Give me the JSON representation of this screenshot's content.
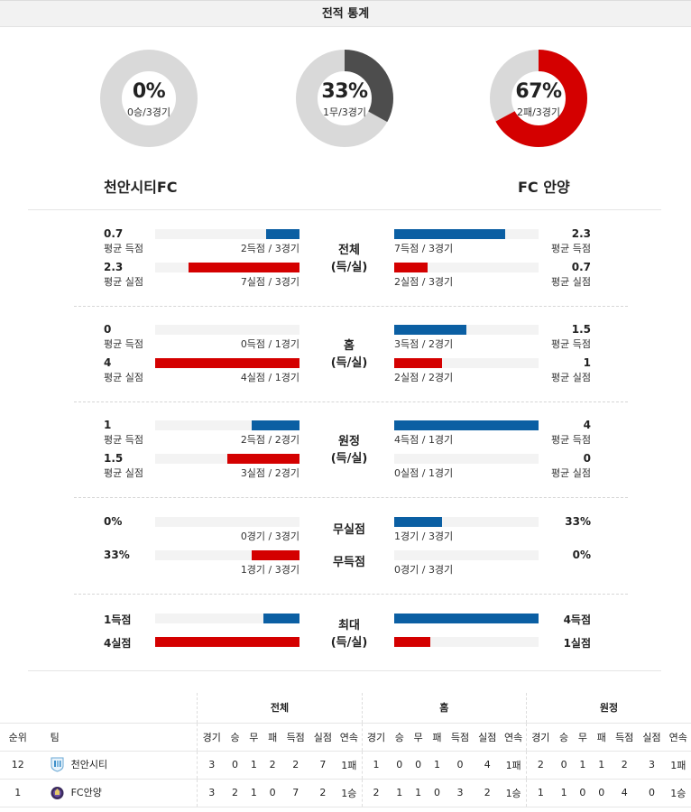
{
  "header": {
    "title": "전적 통계"
  },
  "donuts": [
    {
      "pct": "0%",
      "sub": "0승/3경기",
      "value": 0,
      "color": "#4d4d4d"
    },
    {
      "pct": "33%",
      "sub": "1무/3경기",
      "value": 0.33,
      "color": "#4d4d4d"
    },
    {
      "pct": "67%",
      "sub": "2패/3경기",
      "value": 0.67,
      "color": "#d40000"
    }
  ],
  "teams": {
    "home": "천안시티FC",
    "away": "FC 안양"
  },
  "sections": [
    {
      "title": "전체",
      "subtitle": "(득/실)",
      "rows": [
        {
          "left_val": "0.7",
          "left_lbl": "평균 득점",
          "left_stat": "2득점 / 3경기",
          "left_frac": 0.23,
          "left_color": "blue",
          "right_val": "2.3",
          "right_lbl": "평균 득점",
          "right_stat": "7득점 / 3경기",
          "right_frac": 0.77,
          "right_color": "blue"
        },
        {
          "left_val": "2.3",
          "left_lbl": "평균 실점",
          "left_stat": "7실점 / 3경기",
          "left_frac": 0.77,
          "left_color": "red",
          "right_val": "0.7",
          "right_lbl": "평균 실점",
          "right_stat": "2실점 / 3경기",
          "right_frac": 0.23,
          "right_color": "red"
        }
      ]
    },
    {
      "title": "홈",
      "subtitle": "(득/실)",
      "rows": [
        {
          "left_val": "0",
          "left_lbl": "평균 득점",
          "left_stat": "0득점 / 1경기",
          "left_frac": 0,
          "left_color": "blue",
          "right_val": "1.5",
          "right_lbl": "평균 득점",
          "right_stat": "3득점 / 2경기",
          "right_frac": 0.5,
          "right_color": "blue"
        },
        {
          "left_val": "4",
          "left_lbl": "평균 실점",
          "left_stat": "4실점 / 1경기",
          "left_frac": 1,
          "left_color": "red",
          "right_val": "1",
          "right_lbl": "평균 실점",
          "right_stat": "2실점 / 2경기",
          "right_frac": 0.33,
          "right_color": "red"
        }
      ]
    },
    {
      "title": "원정",
      "subtitle": "(득/실)",
      "rows": [
        {
          "left_val": "1",
          "left_lbl": "평균 득점",
          "left_stat": "2득점 / 2경기",
          "left_frac": 0.33,
          "left_color": "blue",
          "right_val": "4",
          "right_lbl": "평균 득점",
          "right_stat": "4득점 / 1경기",
          "right_frac": 1,
          "right_color": "blue"
        },
        {
          "left_val": "1.5",
          "left_lbl": "평균 실점",
          "left_stat": "3실점 / 2경기",
          "left_frac": 0.5,
          "left_color": "red",
          "right_val": "0",
          "right_lbl": "평균 실점",
          "right_stat": "0실점 / 1경기",
          "right_frac": 0,
          "right_color": "red"
        }
      ]
    }
  ],
  "clean": {
    "rows": [
      {
        "title": "무실점",
        "left_val": "0%",
        "left_stat": "0경기 / 3경기",
        "left_frac": 0,
        "left_color": "blue",
        "right_val": "33%",
        "right_stat": "1경기 / 3경기",
        "right_frac": 0.33,
        "right_color": "blue"
      },
      {
        "title": "무득점",
        "left_val": "33%",
        "left_stat": "1경기 / 3경기",
        "left_frac": 0.33,
        "left_color": "red",
        "right_val": "0%",
        "right_stat": "0경기 / 3경기",
        "right_frac": 0,
        "right_color": "red"
      }
    ]
  },
  "max": {
    "title": "최대",
    "subtitle": "(득/실)",
    "rows": [
      {
        "left_val": "1득점",
        "left_frac": 0.25,
        "left_color": "blue",
        "right_val": "4득점",
        "right_frac": 1,
        "right_color": "blue"
      },
      {
        "left_val": "4실점",
        "left_frac": 1,
        "left_color": "red",
        "right_val": "1실점",
        "right_frac": 0.25,
        "right_color": "red"
      }
    ]
  },
  "colors": {
    "blue": "#0b5fa3",
    "red": "#d40000"
  },
  "standings": {
    "groups": [
      "전체",
      "홈",
      "원정"
    ],
    "columns": [
      "순위",
      "팀",
      "경기",
      "승",
      "무",
      "패",
      "득점",
      "실점",
      "연속",
      "경기",
      "승",
      "무",
      "패",
      "득점",
      "실점",
      "연속",
      "경기",
      "승",
      "무",
      "패",
      "득점",
      "실점",
      "연속"
    ],
    "rows": [
      {
        "rank": "12",
        "team": "천안시티",
        "crest": "cheonan-crest-icon",
        "cells": [
          "3",
          "0",
          "1",
          "2",
          "2",
          "7",
          "1패",
          "1",
          "0",
          "0",
          "1",
          "0",
          "4",
          "1패",
          "2",
          "0",
          "1",
          "1",
          "2",
          "3",
          "1패"
        ]
      },
      {
        "rank": "1",
        "team": "FC안양",
        "crest": "anyang-crest-icon",
        "cells": [
          "3",
          "2",
          "1",
          "0",
          "7",
          "2",
          "1승",
          "2",
          "1",
          "1",
          "0",
          "3",
          "2",
          "1승",
          "1",
          "1",
          "0",
          "0",
          "4",
          "0",
          "1승"
        ]
      }
    ]
  }
}
